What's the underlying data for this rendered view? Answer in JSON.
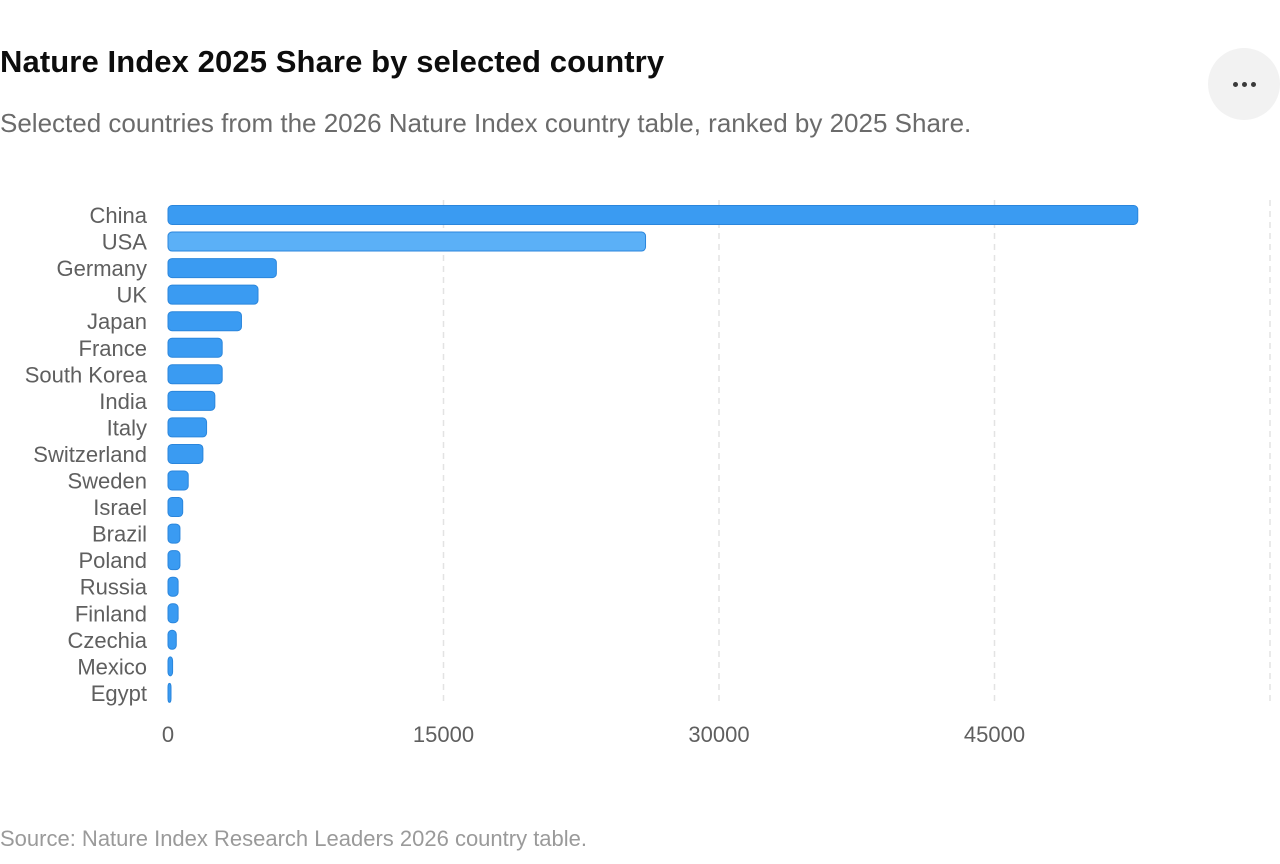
{
  "header": {
    "title": "Nature Index 2025 Share by selected country",
    "subtitle": "Selected countries from the 2026 Nature Index country table, ranked by 2025 Share."
  },
  "menu": {
    "icon": "more-horizontal-icon"
  },
  "footer": {
    "source": "Source: Nature Index Research Leaders 2026 country table."
  },
  "chart_data": {
    "type": "bar",
    "orientation": "horizontal",
    "categories": [
      "China",
      "USA",
      "Germany",
      "UK",
      "Japan",
      "France",
      "South Korea",
      "India",
      "Italy",
      "Switzerland",
      "Sweden",
      "Israel",
      "Brazil",
      "Poland",
      "Russia",
      "Finland",
      "Czechia",
      "Mexico",
      "Egypt"
    ],
    "values": [
      52800,
      26000,
      5900,
      4900,
      4000,
      2950,
      2950,
      2550,
      2100,
      1900,
      1100,
      800,
      650,
      650,
      550,
      550,
      450,
      250,
      130
    ],
    "highlight_category": "USA",
    "xlim": [
      0,
      60000
    ],
    "xticks": [
      0,
      15000,
      30000,
      45000
    ],
    "grid": "vertical-dashed",
    "legend": "none",
    "colors": {
      "bar": "#3a9bf2",
      "bar_highlight": "#5bb0f7",
      "bar_stroke": "#2b86dc",
      "grid": "#e3e3e3"
    }
  }
}
